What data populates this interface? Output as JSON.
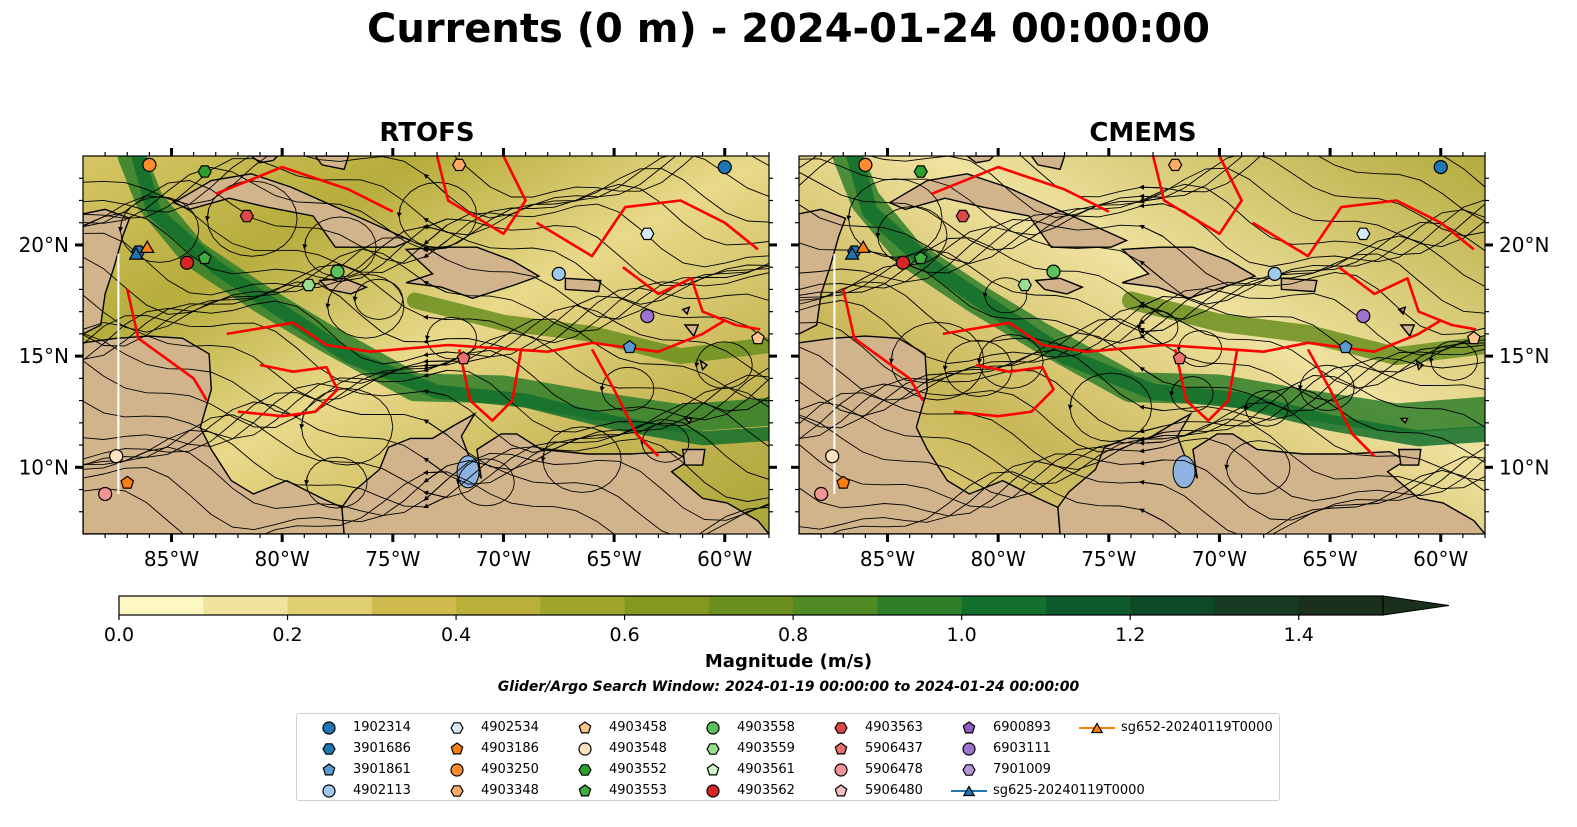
{
  "title": "Currents (0 m) - 2024-01-24 00:00:00",
  "panels": [
    {
      "title": "RTOFS"
    },
    {
      "title": "CMEMS"
    }
  ],
  "map": {
    "lon_range": [
      -89,
      -58
    ],
    "lat_range": [
      7,
      24
    ],
    "lon_ticks": [
      "85°W",
      "80°W",
      "75°W",
      "70°W",
      "65°W",
      "60°W"
    ],
    "lat_ticks": [
      "20°N",
      "15°N",
      "10°N"
    ]
  },
  "colorbar": {
    "label": "Magnitude (m/s)",
    "min": 0.0,
    "max": 1.5,
    "extend": "max",
    "ticks": [
      "0.0",
      "0.2",
      "0.4",
      "0.6",
      "0.8",
      "1.0",
      "1.2",
      "1.4"
    ],
    "colors": [
      "#fdf7c4",
      "#f0e39c",
      "#e1cf73",
      "#cfbb4d",
      "#b8b039",
      "#9fa52a",
      "#84981f",
      "#6a8f1f",
      "#4f8a24",
      "#2f7f2a",
      "#12702c",
      "#0d5a2c",
      "#0f4a28",
      "#163a22",
      "#1a2f1c"
    ]
  },
  "search_window": "Glider/Argo Search Window: 2024-01-19 00:00:00 to 2024-01-24 00:00:00",
  "legend": [
    {
      "label": "1902314",
      "marker": "circle",
      "color": "#1f77b4"
    },
    {
      "label": "3901686",
      "marker": "hexagon",
      "color": "#1f77b4"
    },
    {
      "label": "3901861",
      "marker": "pentagon",
      "color": "#5b9bd5"
    },
    {
      "label": "4902113",
      "marker": "circle",
      "color": "#9dc9ee"
    },
    {
      "label": "4902534",
      "marker": "hexagon",
      "color": "#d6ebfa"
    },
    {
      "label": "4903186",
      "marker": "pentagon",
      "color": "#ff7f0e"
    },
    {
      "label": "4903250",
      "marker": "circle",
      "color": "#ff8c2e"
    },
    {
      "label": "4903348",
      "marker": "hexagon",
      "color": "#ffab66"
    },
    {
      "label": "4903458",
      "marker": "pentagon",
      "color": "#ffc48a"
    },
    {
      "label": "4903548",
      "marker": "circle",
      "color": "#ffe2c0"
    },
    {
      "label": "4903552",
      "marker": "hexagon",
      "color": "#2ca02c"
    },
    {
      "label": "4903553",
      "marker": "pentagon",
      "color": "#3fae3f"
    },
    {
      "label": "4903558",
      "marker": "circle",
      "color": "#5cc15c"
    },
    {
      "label": "4903559",
      "marker": "hexagon",
      "color": "#9adf8f"
    },
    {
      "label": "4903561",
      "marker": "pentagon",
      "color": "#cdf5c5"
    },
    {
      "label": "4903562",
      "marker": "circle",
      "color": "#d62728"
    },
    {
      "label": "4903563",
      "marker": "hexagon",
      "color": "#e04848"
    },
    {
      "label": "5906437",
      "marker": "pentagon",
      "color": "#ec7070"
    },
    {
      "label": "5906478",
      "marker": "circle",
      "color": "#f29595"
    },
    {
      "label": "5906480",
      "marker": "pentagon",
      "color": "#f7c0c0"
    },
    {
      "label": "6900893",
      "marker": "pentagon",
      "color": "#8c5cc4"
    },
    {
      "label": "6903111",
      "marker": "circle",
      "color": "#9e72cf"
    },
    {
      "label": "7901009",
      "marker": "hexagon",
      "color": "#b495dc"
    },
    {
      "label": "sg625-20240119T0000",
      "marker": "triangle-line",
      "color": "#1f77b4"
    },
    {
      "label": "sg652-20240119T0000",
      "marker": "triangle-line",
      "color": "#ff7f0e"
    }
  ],
  "floats": [
    {
      "id": "1902314",
      "lon": -60.0,
      "lat": 23.5
    },
    {
      "id": "3901686",
      "lon": -86.5,
      "lat": 19.7
    },
    {
      "id": "3901861",
      "lon": -64.3,
      "lat": 15.4
    },
    {
      "id": "4902113",
      "lon": -67.5,
      "lat": 18.7
    },
    {
      "id": "4902534",
      "lon": -63.5,
      "lat": 20.5
    },
    {
      "id": "4903186",
      "lon": -87.0,
      "lat": 9.3
    },
    {
      "id": "4903250",
      "lon": -86.0,
      "lat": 23.6
    },
    {
      "id": "4903348",
      "lon": -72.0,
      "lat": 23.6
    },
    {
      "id": "4903458",
      "lon": -58.5,
      "lat": 15.8
    },
    {
      "id": "4903548",
      "lon": -87.5,
      "lat": 10.5
    },
    {
      "id": "4903552",
      "lon": -83.5,
      "lat": 23.3
    },
    {
      "id": "4903553",
      "lon": -83.5,
      "lat": 19.4
    },
    {
      "id": "4903558",
      "lon": -77.5,
      "lat": 18.8
    },
    {
      "id": "4903559",
      "lon": -78.8,
      "lat": 18.2
    },
    {
      "id": "4903562",
      "lon": -84.3,
      "lat": 19.2
    },
    {
      "id": "4903563",
      "lon": -81.6,
      "lat": 21.3
    },
    {
      "id": "5906437",
      "lon": -71.8,
      "lat": 14.9
    },
    {
      "id": "5906478",
      "lon": -88.0,
      "lat": 8.8
    },
    {
      "id": "6903111",
      "lon": -63.5,
      "lat": 16.8
    }
  ],
  "gliders": [
    {
      "id": "sg625-20240119T0000",
      "lon": -86.6,
      "lat": 19.6
    },
    {
      "id": "sg652-20240119T0000",
      "lon": -86.1,
      "lat": 19.9
    }
  ]
}
